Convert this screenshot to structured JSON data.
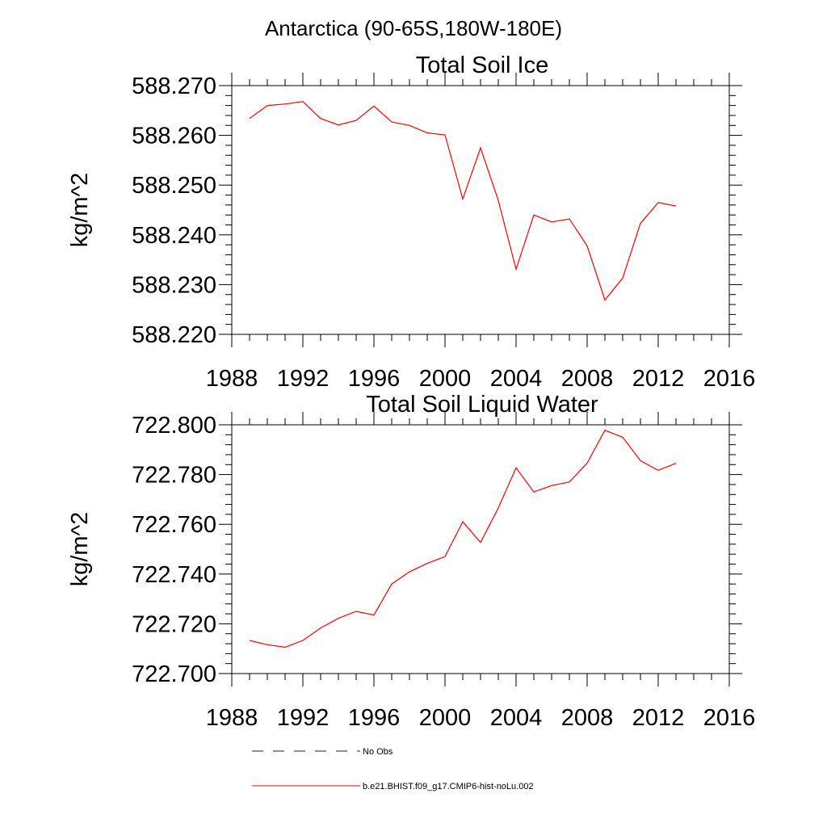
{
  "page_title": "Antarctica (90-65S,180W-180E)",
  "colors": {
    "model_line": "#ff0000",
    "obs_line": "#1a1a6e",
    "axis": "#000000"
  },
  "legend": [
    {
      "label": "No Obs",
      "style": "dashed",
      "color": "#1a1a6e"
    },
    {
      "label": "b.e21.BHIST.f09_g17.CMIP6-hist-noLu.002",
      "style": "solid",
      "color": "#ff0000"
    }
  ],
  "chart_data": [
    {
      "type": "line",
      "title": "Total Soil Ice",
      "ylabel": "kg/m^2",
      "xlabel": "",
      "xlim": [
        1988,
        2016
      ],
      "ylim": [
        588.22,
        588.27
      ],
      "xticks": [
        "1988",
        "1992",
        "1996",
        "2000",
        "2004",
        "2008",
        "2012",
        "2016"
      ],
      "yticks": [
        "588.220",
        "588.230",
        "588.240",
        "588.250",
        "588.260",
        "588.270"
      ],
      "x": [
        1989,
        1990,
        1991,
        1992,
        1993,
        1994,
        1995,
        1996,
        1997,
        1998,
        1999,
        2000,
        2001,
        2002,
        2003,
        2004,
        2005,
        2006,
        2007,
        2008,
        2009,
        2010,
        2011,
        2012,
        2013
      ],
      "series": [
        {
          "name": "b.e21.BHIST.f09_g17.CMIP6-hist-noLu.002",
          "values": [
            588.2634,
            588.266,
            588.2663,
            588.2668,
            588.2634,
            588.2621,
            588.263,
            588.2659,
            588.2627,
            588.262,
            588.2605,
            588.2601,
            588.2472,
            588.2575,
            588.2469,
            588.2331,
            588.244,
            588.2426,
            588.2432,
            588.2378,
            588.2269,
            588.2313,
            588.2423,
            588.2465,
            588.2458
          ]
        }
      ]
    },
    {
      "type": "line",
      "title": "Total Soil Liquid Water",
      "ylabel": "kg/m^2",
      "xlabel": "",
      "xlim": [
        1988,
        2016
      ],
      "ylim": [
        722.7,
        722.8
      ],
      "xticks": [
        "1988",
        "1992",
        "1996",
        "2000",
        "2004",
        "2008",
        "2012",
        "2016"
      ],
      "yticks": [
        "722.700",
        "722.720",
        "722.740",
        "722.760",
        "722.780",
        "722.800"
      ],
      "x": [
        1989,
        1990,
        1991,
        1992,
        1993,
        1994,
        1995,
        1996,
        1997,
        1998,
        1999,
        2000,
        2001,
        2002,
        2003,
        2004,
        2005,
        2006,
        2007,
        2008,
        2009,
        2010,
        2011,
        2012,
        2013
      ],
      "series": [
        {
          "name": "b.e21.BHIST.f09_g17.CMIP6-hist-noLu.002",
          "values": [
            722.7133,
            722.7116,
            722.7106,
            722.7133,
            722.7183,
            722.7222,
            722.725,
            722.7235,
            722.736,
            722.7409,
            722.7443,
            722.747,
            722.761,
            722.7527,
            722.7666,
            722.7827,
            722.773,
            722.7756,
            722.777,
            722.7846,
            722.7978,
            722.795,
            722.7856,
            722.7817,
            722.7845
          ]
        }
      ]
    }
  ]
}
